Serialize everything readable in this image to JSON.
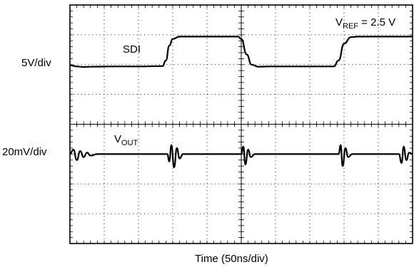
{
  "chart_data": {
    "type": "line",
    "title": "",
    "xlabel": "Time (50ns/div)",
    "x_unit": "ns",
    "x_divisions": 10,
    "y_divisions": 8,
    "xlim": [
      0,
      500
    ],
    "grid": true,
    "annotation": {
      "main": "V",
      "sub": "REF",
      "rest": " = 2.5 V"
    },
    "channels": [
      {
        "scale_label": "5V/div",
        "series_label": {
          "main": "SDI",
          "sub": ""
        },
        "unit": "V",
        "points": [
          [
            0,
            0.2
          ],
          [
            10,
            0.0
          ],
          [
            20,
            -0.1
          ],
          [
            30,
            -0.05
          ],
          [
            60,
            0.0
          ],
          [
            100,
            0.0
          ],
          [
            135,
            0.05
          ],
          [
            140,
            1.0
          ],
          [
            145,
            3.5
          ],
          [
            150,
            4.6
          ],
          [
            160,
            5.0
          ],
          [
            200,
            5.0
          ],
          [
            245,
            5.0
          ],
          [
            250,
            4.6
          ],
          [
            258,
            2.0
          ],
          [
            265,
            0.3
          ],
          [
            275,
            -0.05
          ],
          [
            290,
            0.0
          ],
          [
            340,
            0.0
          ],
          [
            385,
            0.0
          ],
          [
            392,
            1.0
          ],
          [
            400,
            3.8
          ],
          [
            410,
            4.9
          ],
          [
            420,
            5.0
          ],
          [
            500,
            5.0
          ]
        ]
      },
      {
        "scale_label": "20mV/div",
        "series_label": {
          "main": "V",
          "sub": "OUT"
        },
        "unit": "mV",
        "points": [
          [
            0,
            0
          ],
          [
            5,
            3
          ],
          [
            10,
            -4
          ],
          [
            15,
            2
          ],
          [
            20,
            -2
          ],
          [
            25,
            1
          ],
          [
            30,
            -1
          ],
          [
            40,
            0
          ],
          [
            142,
            0
          ],
          [
            145,
            -5
          ],
          [
            148,
            6
          ],
          [
            152,
            -9
          ],
          [
            156,
            4
          ],
          [
            160,
            -3
          ],
          [
            165,
            0
          ],
          [
            250,
            0
          ],
          [
            253,
            5
          ],
          [
            256,
            -7
          ],
          [
            260,
            3
          ],
          [
            264,
            -2
          ],
          [
            270,
            0
          ],
          [
            392,
            0
          ],
          [
            395,
            6
          ],
          [
            398,
            -8
          ],
          [
            402,
            4
          ],
          [
            406,
            -2
          ],
          [
            412,
            0
          ],
          [
            480,
            0
          ],
          [
            484,
            -6
          ],
          [
            487,
            5
          ],
          [
            491,
            -4
          ],
          [
            495,
            1
          ],
          [
            500,
            0
          ]
        ]
      }
    ]
  }
}
